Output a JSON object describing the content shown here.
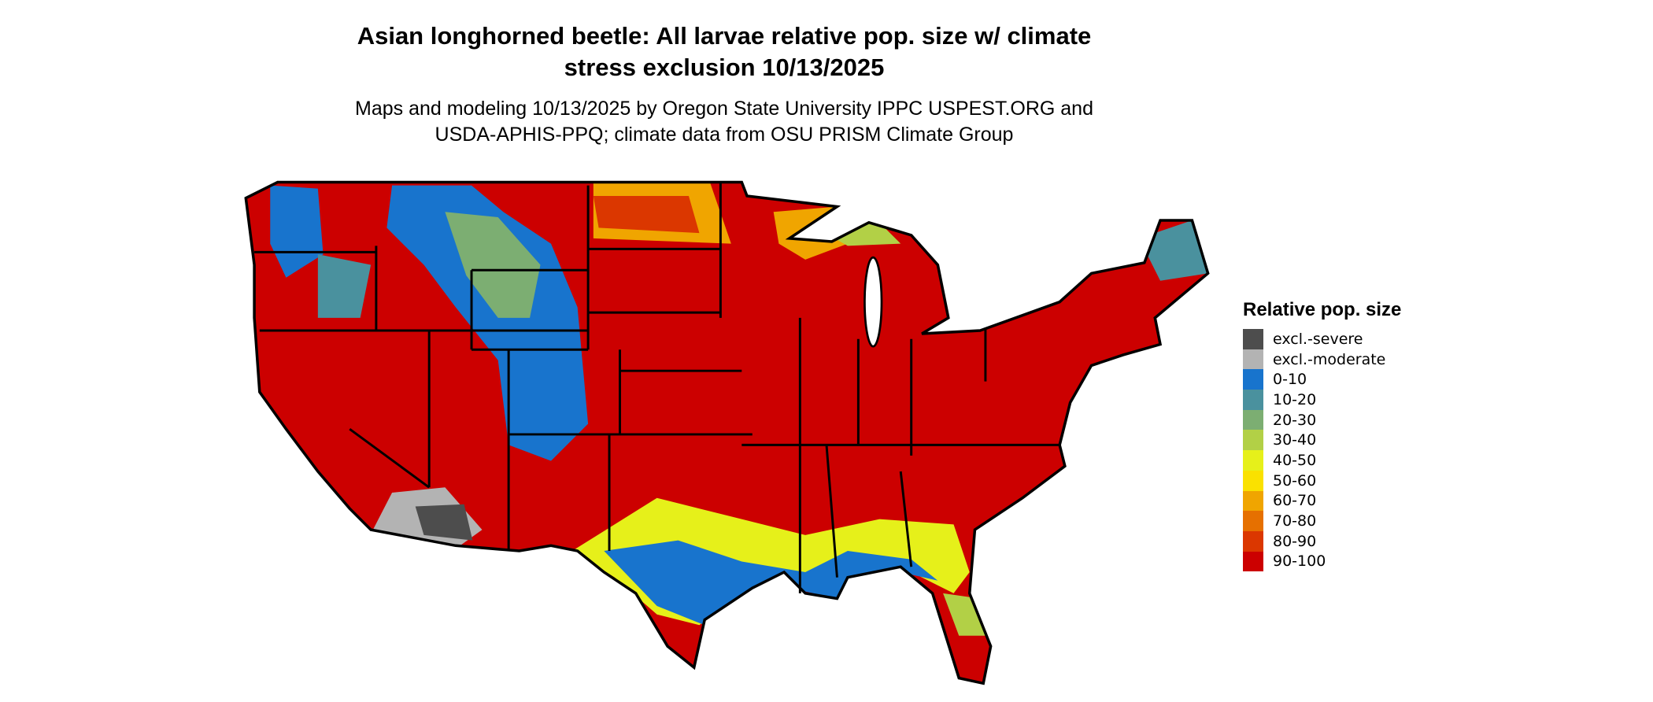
{
  "title_lines": [
    "Asian longhorned beetle: All larvae relative pop. size w/ climate",
    "stress exclusion 10/13/2025"
  ],
  "subtitle_lines": [
    "Maps and modeling 10/13/2025 by Oregon State University IPPC USPEST.ORG and",
    "USDA-APHIS-PPQ; climate data from OSU PRISM Climate Group"
  ],
  "legend": {
    "title": "Relative pop. size",
    "items": [
      {
        "label": "excl.-severe",
        "color": "#4d4d4d"
      },
      {
        "label": "excl.-moderate",
        "color": "#b3b3b3"
      },
      {
        "label": "0-10",
        "color": "#1874cd"
      },
      {
        "label": "10-20",
        "color": "#4a919e"
      },
      {
        "label": "20-30",
        "color": "#7cae72"
      },
      {
        "label": "30-40",
        "color": "#b2d046"
      },
      {
        "label": "40-50",
        "color": "#e6f01a"
      },
      {
        "label": "50-60",
        "color": "#fae100"
      },
      {
        "label": "60-70",
        "color": "#f0a500"
      },
      {
        "label": "70-80",
        "color": "#e67000"
      },
      {
        "label": "80-90",
        "color": "#db3700"
      },
      {
        "label": "90-100",
        "color": "#cc0000"
      }
    ]
  },
  "map": {
    "region": "Contiguous United States",
    "dominant_class": "90-100"
  }
}
